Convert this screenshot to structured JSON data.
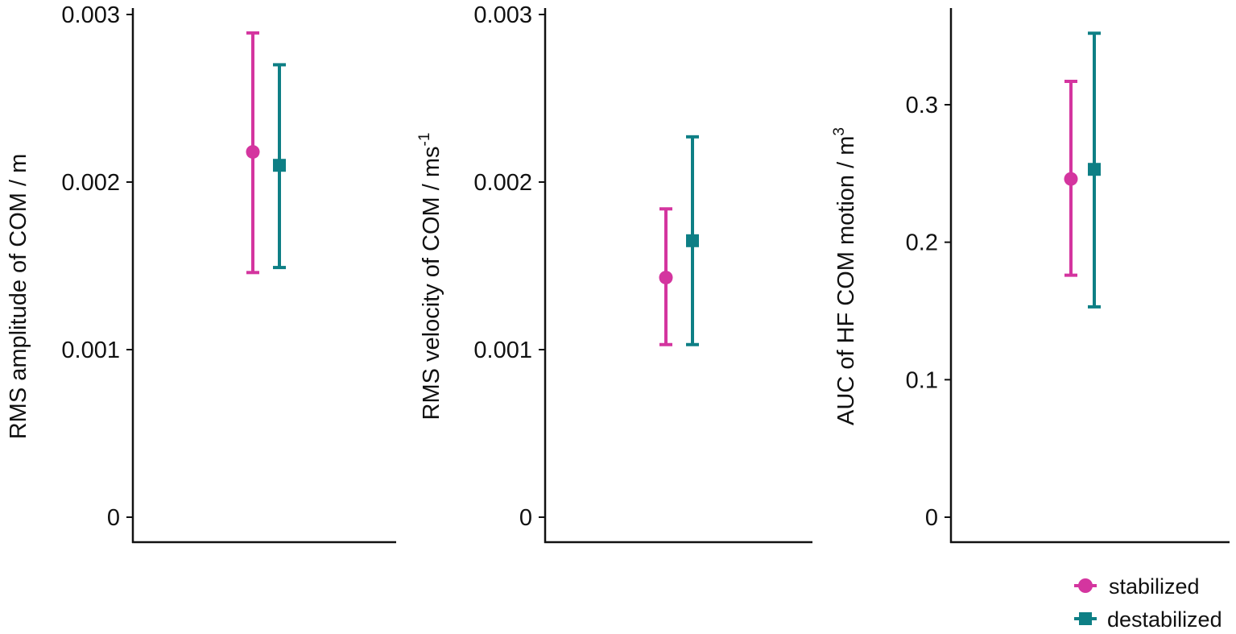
{
  "chart_data": [
    {
      "type": "scatter",
      "subtype": "point-with-errorbars",
      "title": "",
      "xlabel": "",
      "ylabel": "RMS amplitude of COM / m",
      "ylabel_superscript": "",
      "ylim": [
        0,
        0.003
      ],
      "yticks": [
        0,
        0.001,
        0.002,
        0.003
      ],
      "ytick_labels": [
        "0",
        "0.001",
        "0.002",
        "0.003"
      ],
      "series": [
        {
          "name": "stabilized",
          "marker": "circle",
          "value": 0.00218,
          "lower": 0.00146,
          "upper": 0.00289
        },
        {
          "name": "destabilized",
          "marker": "square",
          "value": 0.0021,
          "lower": 0.00149,
          "upper": 0.0027
        }
      ]
    },
    {
      "type": "scatter",
      "subtype": "point-with-errorbars",
      "title": "",
      "xlabel": "",
      "ylabel": "RMS velocity of COM / ms",
      "ylabel_superscript": "-1",
      "ylim": [
        0,
        0.003
      ],
      "yticks": [
        0,
        0.001,
        0.002,
        0.003
      ],
      "ytick_labels": [
        "0",
        "0.001",
        "0.002",
        "0.003"
      ],
      "series": [
        {
          "name": "stabilized",
          "marker": "circle",
          "value": 0.00143,
          "lower": 0.00103,
          "upper": 0.00184
        },
        {
          "name": "destabilized",
          "marker": "square",
          "value": 0.00165,
          "lower": 0.00103,
          "upper": 0.00227
        }
      ]
    },
    {
      "type": "scatter",
      "subtype": "point-with-errorbars",
      "title": "",
      "xlabel": "",
      "ylabel": "AUC of HF COM motion / m",
      "ylabel_superscript": "3",
      "ylim": [
        0,
        0.37
      ],
      "yticks": [
        0,
        0.1,
        0.2,
        0.3
      ],
      "ytick_labels": [
        "0",
        "0.1",
        "0.2",
        "0.3"
      ],
      "series": [
        {
          "name": "stabilized",
          "marker": "circle",
          "value": 0.246,
          "lower": 0.176,
          "upper": 0.317
        },
        {
          "name": "destabilized",
          "marker": "square",
          "value": 0.253,
          "lower": 0.153,
          "upper": 0.352
        }
      ]
    }
  ],
  "legend": {
    "position": "bottom-right",
    "items": [
      {
        "label": "stabilized",
        "marker": "circle",
        "color": "#D4359F"
      },
      {
        "label": "destabilized",
        "marker": "square",
        "color": "#0E7F85"
      }
    ]
  },
  "colors": {
    "stabilized": "#D4359F",
    "destabilized": "#0E7F85",
    "axis": "#111111"
  }
}
